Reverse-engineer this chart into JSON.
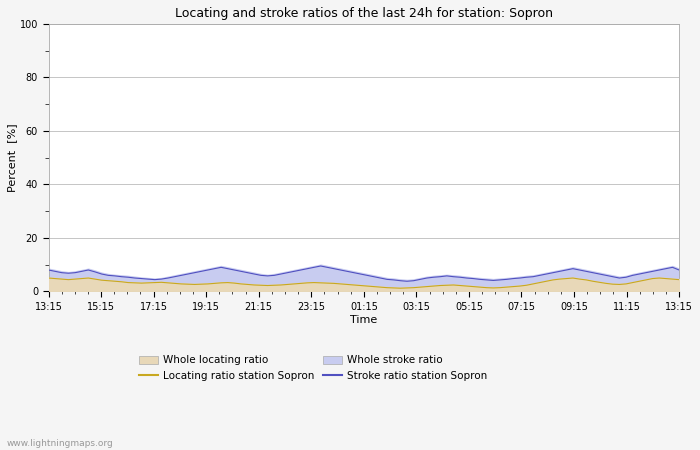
{
  "title": "Locating and stroke ratios of the last 24h for station: Sopron",
  "xlabel": "Time",
  "ylabel": "Percent  [%]",
  "ylim": [
    0,
    100
  ],
  "yticks_major": [
    0,
    20,
    40,
    60,
    80,
    100
  ],
  "yticks_minor": [
    10,
    30,
    50,
    70,
    90
  ],
  "x_labels": [
    "13:15",
    "15:15",
    "17:15",
    "19:15",
    "21:15",
    "23:15",
    "01:15",
    "03:15",
    "05:15",
    "07:15",
    "09:15",
    "11:15",
    "13:15"
  ],
  "background_color": "#f5f5f5",
  "plot_bg_color": "#ffffff",
  "watermark": "www.lightningmaps.org",
  "whole_locating_color": "#e8d8b8",
  "whole_stroke_color": "#c8ccf0",
  "locating_line_color": "#c8a820",
  "stroke_line_color": "#5050c0",
  "legend_labels": [
    "Whole locating ratio",
    "Locating ratio station Sopron",
    "Whole stroke ratio",
    "Stroke ratio station Sopron"
  ],
  "whole_locating_ratio": [
    5.2,
    5.0,
    4.8,
    4.6,
    4.8,
    5.0,
    5.2,
    4.8,
    4.4,
    4.2,
    4.0,
    3.8,
    3.5,
    3.4,
    3.3,
    3.4,
    3.5,
    3.6,
    3.4,
    3.2,
    3.0,
    2.9,
    2.8,
    2.9,
    3.0,
    3.2,
    3.4,
    3.5,
    3.3,
    3.0,
    2.8,
    2.6,
    2.5,
    2.4,
    2.5,
    2.6,
    2.8,
    3.0,
    3.2,
    3.4,
    3.5,
    3.4,
    3.3,
    3.2,
    3.0,
    2.8,
    2.6,
    2.4,
    2.2,
    2.0,
    1.8,
    1.6,
    1.5,
    1.4,
    1.5,
    1.6,
    1.8,
    2.0,
    2.2,
    2.4,
    2.5,
    2.6,
    2.4,
    2.2,
    2.0,
    1.8,
    1.6,
    1.5,
    1.6,
    1.8,
    2.0,
    2.2,
    2.5,
    3.0,
    3.5,
    4.0,
    4.5,
    4.8,
    5.0,
    5.2,
    4.8,
    4.5,
    4.0,
    3.6,
    3.2,
    2.9,
    2.8,
    3.0,
    3.5,
    4.0,
    4.5,
    5.0,
    5.2,
    5.0,
    4.8,
    4.6
  ],
  "whole_stroke_ratio": [
    8.5,
    8.0,
    7.5,
    7.2,
    7.5,
    8.0,
    8.5,
    7.8,
    7.0,
    6.5,
    6.2,
    6.0,
    5.8,
    5.5,
    5.2,
    5.0,
    4.8,
    5.0,
    5.5,
    6.0,
    6.5,
    7.0,
    7.5,
    8.0,
    8.5,
    9.0,
    9.5,
    9.0,
    8.5,
    8.0,
    7.5,
    7.0,
    6.5,
    6.2,
    6.5,
    7.0,
    7.5,
    8.0,
    8.5,
    9.0,
    9.5,
    10.0,
    9.5,
    9.0,
    8.5,
    8.0,
    7.5,
    7.0,
    6.5,
    6.0,
    5.5,
    5.0,
    4.8,
    4.5,
    4.3,
    4.5,
    5.0,
    5.5,
    5.8,
    6.0,
    6.2,
    6.0,
    5.8,
    5.5,
    5.2,
    5.0,
    4.8,
    4.6,
    4.8,
    5.0,
    5.2,
    5.5,
    5.8,
    6.0,
    6.5,
    7.0,
    7.5,
    8.0,
    8.5,
    9.0,
    8.5,
    8.0,
    7.5,
    7.0,
    6.5,
    6.0,
    5.5,
    5.8,
    6.5,
    7.0,
    7.5,
    8.0,
    8.5,
    9.0,
    9.5,
    8.5
  ],
  "locating_line": [
    5.0,
    4.8,
    4.6,
    4.4,
    4.6,
    4.8,
    5.0,
    4.6,
    4.2,
    4.0,
    3.8,
    3.6,
    3.3,
    3.2,
    3.1,
    3.2,
    3.3,
    3.4,
    3.2,
    3.0,
    2.8,
    2.7,
    2.6,
    2.7,
    2.8,
    3.0,
    3.2,
    3.3,
    3.1,
    2.8,
    2.6,
    2.4,
    2.3,
    2.2,
    2.3,
    2.4,
    2.6,
    2.8,
    3.0,
    3.2,
    3.3,
    3.2,
    3.1,
    3.0,
    2.8,
    2.6,
    2.4,
    2.2,
    2.0,
    1.8,
    1.6,
    1.4,
    1.3,
    1.2,
    1.3,
    1.4,
    1.6,
    1.8,
    2.0,
    2.2,
    2.3,
    2.4,
    2.2,
    2.0,
    1.8,
    1.6,
    1.4,
    1.3,
    1.4,
    1.6,
    1.8,
    2.0,
    2.3,
    2.8,
    3.3,
    3.8,
    4.3,
    4.6,
    4.8,
    5.0,
    4.6,
    4.3,
    3.8,
    3.4,
    3.0,
    2.7,
    2.6,
    2.8,
    3.3,
    3.8,
    4.3,
    4.8,
    5.0,
    4.8,
    4.6,
    4.4
  ],
  "stroke_line": [
    8.0,
    7.5,
    7.0,
    6.8,
    7.0,
    7.5,
    8.0,
    7.3,
    6.5,
    6.0,
    5.8,
    5.5,
    5.3,
    5.0,
    4.8,
    4.6,
    4.4,
    4.6,
    5.0,
    5.5,
    6.0,
    6.5,
    7.0,
    7.5,
    8.0,
    8.5,
    9.0,
    8.5,
    8.0,
    7.5,
    7.0,
    6.5,
    6.0,
    5.8,
    6.0,
    6.5,
    7.0,
    7.5,
    8.0,
    8.5,
    9.0,
    9.5,
    9.0,
    8.5,
    8.0,
    7.5,
    7.0,
    6.5,
    6.0,
    5.5,
    5.0,
    4.5,
    4.3,
    4.0,
    3.8,
    4.0,
    4.5,
    5.0,
    5.3,
    5.5,
    5.8,
    5.5,
    5.3,
    5.0,
    4.8,
    4.5,
    4.3,
    4.1,
    4.3,
    4.5,
    4.8,
    5.0,
    5.3,
    5.5,
    6.0,
    6.5,
    7.0,
    7.5,
    8.0,
    8.5,
    8.0,
    7.5,
    7.0,
    6.5,
    6.0,
    5.5,
    5.0,
    5.3,
    6.0,
    6.5,
    7.0,
    7.5,
    8.0,
    8.5,
    9.0,
    8.0
  ]
}
